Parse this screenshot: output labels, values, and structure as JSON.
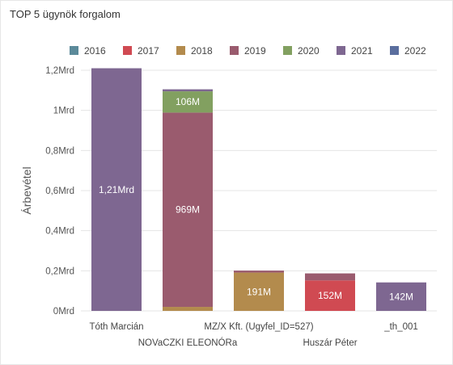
{
  "chart_data": {
    "type": "bar",
    "stacked": true,
    "title": "TOP 5 ügynök forgalom",
    "ylabel": "Árbevétel",
    "xlabel": "",
    "ylim": [
      0,
      1.2
    ],
    "yticks": [
      {
        "value": 0,
        "label": "0Mrd"
      },
      {
        "value": 0.2,
        "label": "0,2Mrd"
      },
      {
        "value": 0.4,
        "label": "0,4Mrd"
      },
      {
        "value": 0.6,
        "label": "0,6Mrd"
      },
      {
        "value": 0.8,
        "label": "0,8Mrd"
      },
      {
        "value": 1.0,
        "label": "1Mrd"
      },
      {
        "value": 1.2,
        "label": "1,2Mrd"
      }
    ],
    "grid": true,
    "legend_position": "top",
    "categories": [
      "Tóth Marcián",
      "NOVaCZKI ELEONÓRa",
      "MZ/X Kft. (Ugyfel_ID=527)",
      "Huszár Péter",
      "_th_001"
    ],
    "series": [
      {
        "name": "2016",
        "color": "#5b8a9a",
        "values": [
          0,
          0,
          0,
          0,
          0
        ]
      },
      {
        "name": "2017",
        "color": "#d04a52",
        "values": [
          0,
          0,
          0,
          0.152,
          0
        ]
      },
      {
        "name": "2018",
        "color": "#b38b4d",
        "values": [
          0,
          0.02,
          0.191,
          0,
          0
        ]
      },
      {
        "name": "2019",
        "color": "#9a5b6e",
        "values": [
          0,
          0.969,
          0.01,
          0.035,
          0
        ]
      },
      {
        "name": "2020",
        "color": "#82a060",
        "values": [
          0,
          0.106,
          0,
          0,
          0
        ]
      },
      {
        "name": "2021",
        "color": "#7e6791",
        "values": [
          1.21,
          0.01,
          0,
          0,
          0.142
        ]
      },
      {
        "name": "2022",
        "color": "#5a6e9e",
        "values": [
          0,
          0,
          0,
          0,
          0
        ]
      }
    ],
    "data_labels": [
      {
        "category": 0,
        "series": 5,
        "text": "1,21Mrd"
      },
      {
        "category": 1,
        "series": 3,
        "text": "969M"
      },
      {
        "category": 1,
        "series": 4,
        "text": "106M"
      },
      {
        "category": 2,
        "series": 2,
        "text": "191M"
      },
      {
        "category": 3,
        "series": 1,
        "text": "152M"
      },
      {
        "category": 4,
        "series": 5,
        "text": "142M"
      }
    ]
  }
}
